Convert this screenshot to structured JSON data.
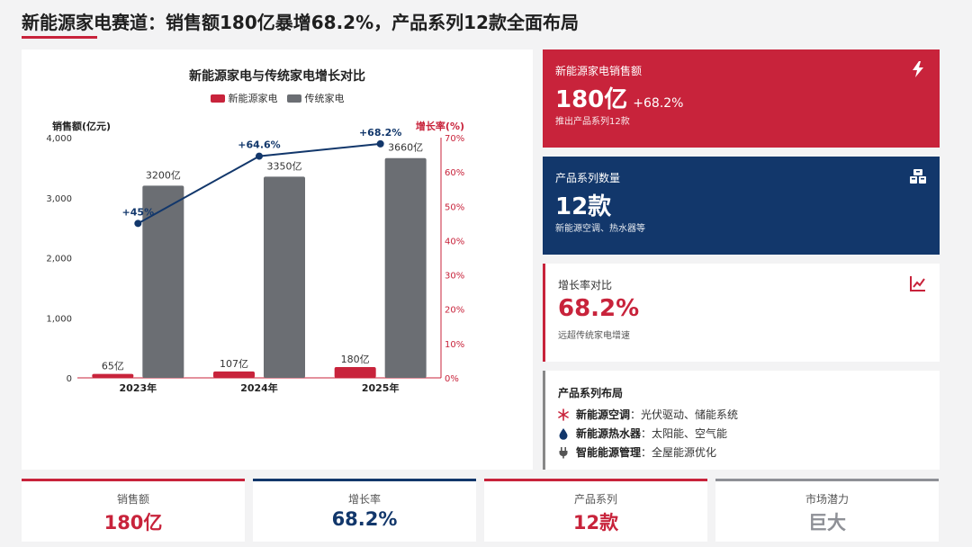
{
  "page": {
    "title": "新能源家电赛道：销售额180亿暴增68.2%，产品系列12款全面布局"
  },
  "colors": {
    "red": "#c8233b",
    "navy": "#12376b",
    "gray": "#6b6e73",
    "light_gray": "#8e9096"
  },
  "chart_data": {
    "type": "bar",
    "title": "新能源家电与传统家电增长对比",
    "categories": [
      "2023年",
      "2024年",
      "2025年"
    ],
    "series": [
      {
        "name": "新能源家电",
        "type": "bar",
        "values": [
          65,
          107,
          180
        ],
        "labels": [
          "65亿",
          "107亿",
          "180亿"
        ],
        "color": "#c8233b"
      },
      {
        "name": "传统家电",
        "type": "bar",
        "values": [
          3200,
          3350,
          3660
        ],
        "labels": [
          "3200亿",
          "3350亿",
          "3660亿"
        ],
        "color": "#6b6e73"
      },
      {
        "name": "增长率",
        "type": "line",
        "axis": "right",
        "values": [
          45,
          64.6,
          68.2
        ],
        "labels": [
          "+45%",
          "+64.6%",
          "+68.2%"
        ],
        "color": "#12376b"
      }
    ],
    "ylabel": "销售额(亿元)",
    "y2label": "增长率(%)",
    "ylim": [
      0,
      4000
    ],
    "y2lim": [
      0,
      70
    ],
    "yticks": [
      "0",
      "1,000",
      "2,000",
      "3,000",
      "4,000"
    ],
    "y2ticks": [
      "0%",
      "10%",
      "20%",
      "30%",
      "40%",
      "50%",
      "60%",
      "70%"
    ],
    "grid": false,
    "legend": "top-center"
  },
  "cards": {
    "sales": {
      "label": "新能源家电销售额",
      "value": "180亿",
      "delta": "+68.2%",
      "sub": "推出产品系列12款",
      "icon": "lightning-icon"
    },
    "series": {
      "label": "产品系列数量",
      "value": "12款",
      "sub": "新能源空调、热水器等",
      "icon": "boxes-icon"
    },
    "growth": {
      "label": "增长率对比",
      "value": "68.2%",
      "sub": "远超传统家电增速",
      "icon": "trend-line-icon"
    },
    "layout": {
      "title": "产品系列布局",
      "items": [
        {
          "name": "新能源空调",
          "desc": "：光伏驱动、储能系统",
          "icon": "snowflake-icon"
        },
        {
          "name": "新能源热水器",
          "desc": "：太阳能、空气能",
          "icon": "water-drop-icon"
        },
        {
          "name": "智能能源管理",
          "desc": "：全屋能源优化",
          "icon": "plug-icon"
        }
      ]
    }
  },
  "kpis": [
    {
      "label": "销售额",
      "value": "180亿",
      "color": "#c8233b"
    },
    {
      "label": "增长率",
      "value": "68.2%",
      "color": "#12376b"
    },
    {
      "label": "产品系列",
      "value": "12款",
      "color": "#c8233b"
    },
    {
      "label": "市场潜力",
      "value": "巨大",
      "color": "#8e9096"
    }
  ]
}
